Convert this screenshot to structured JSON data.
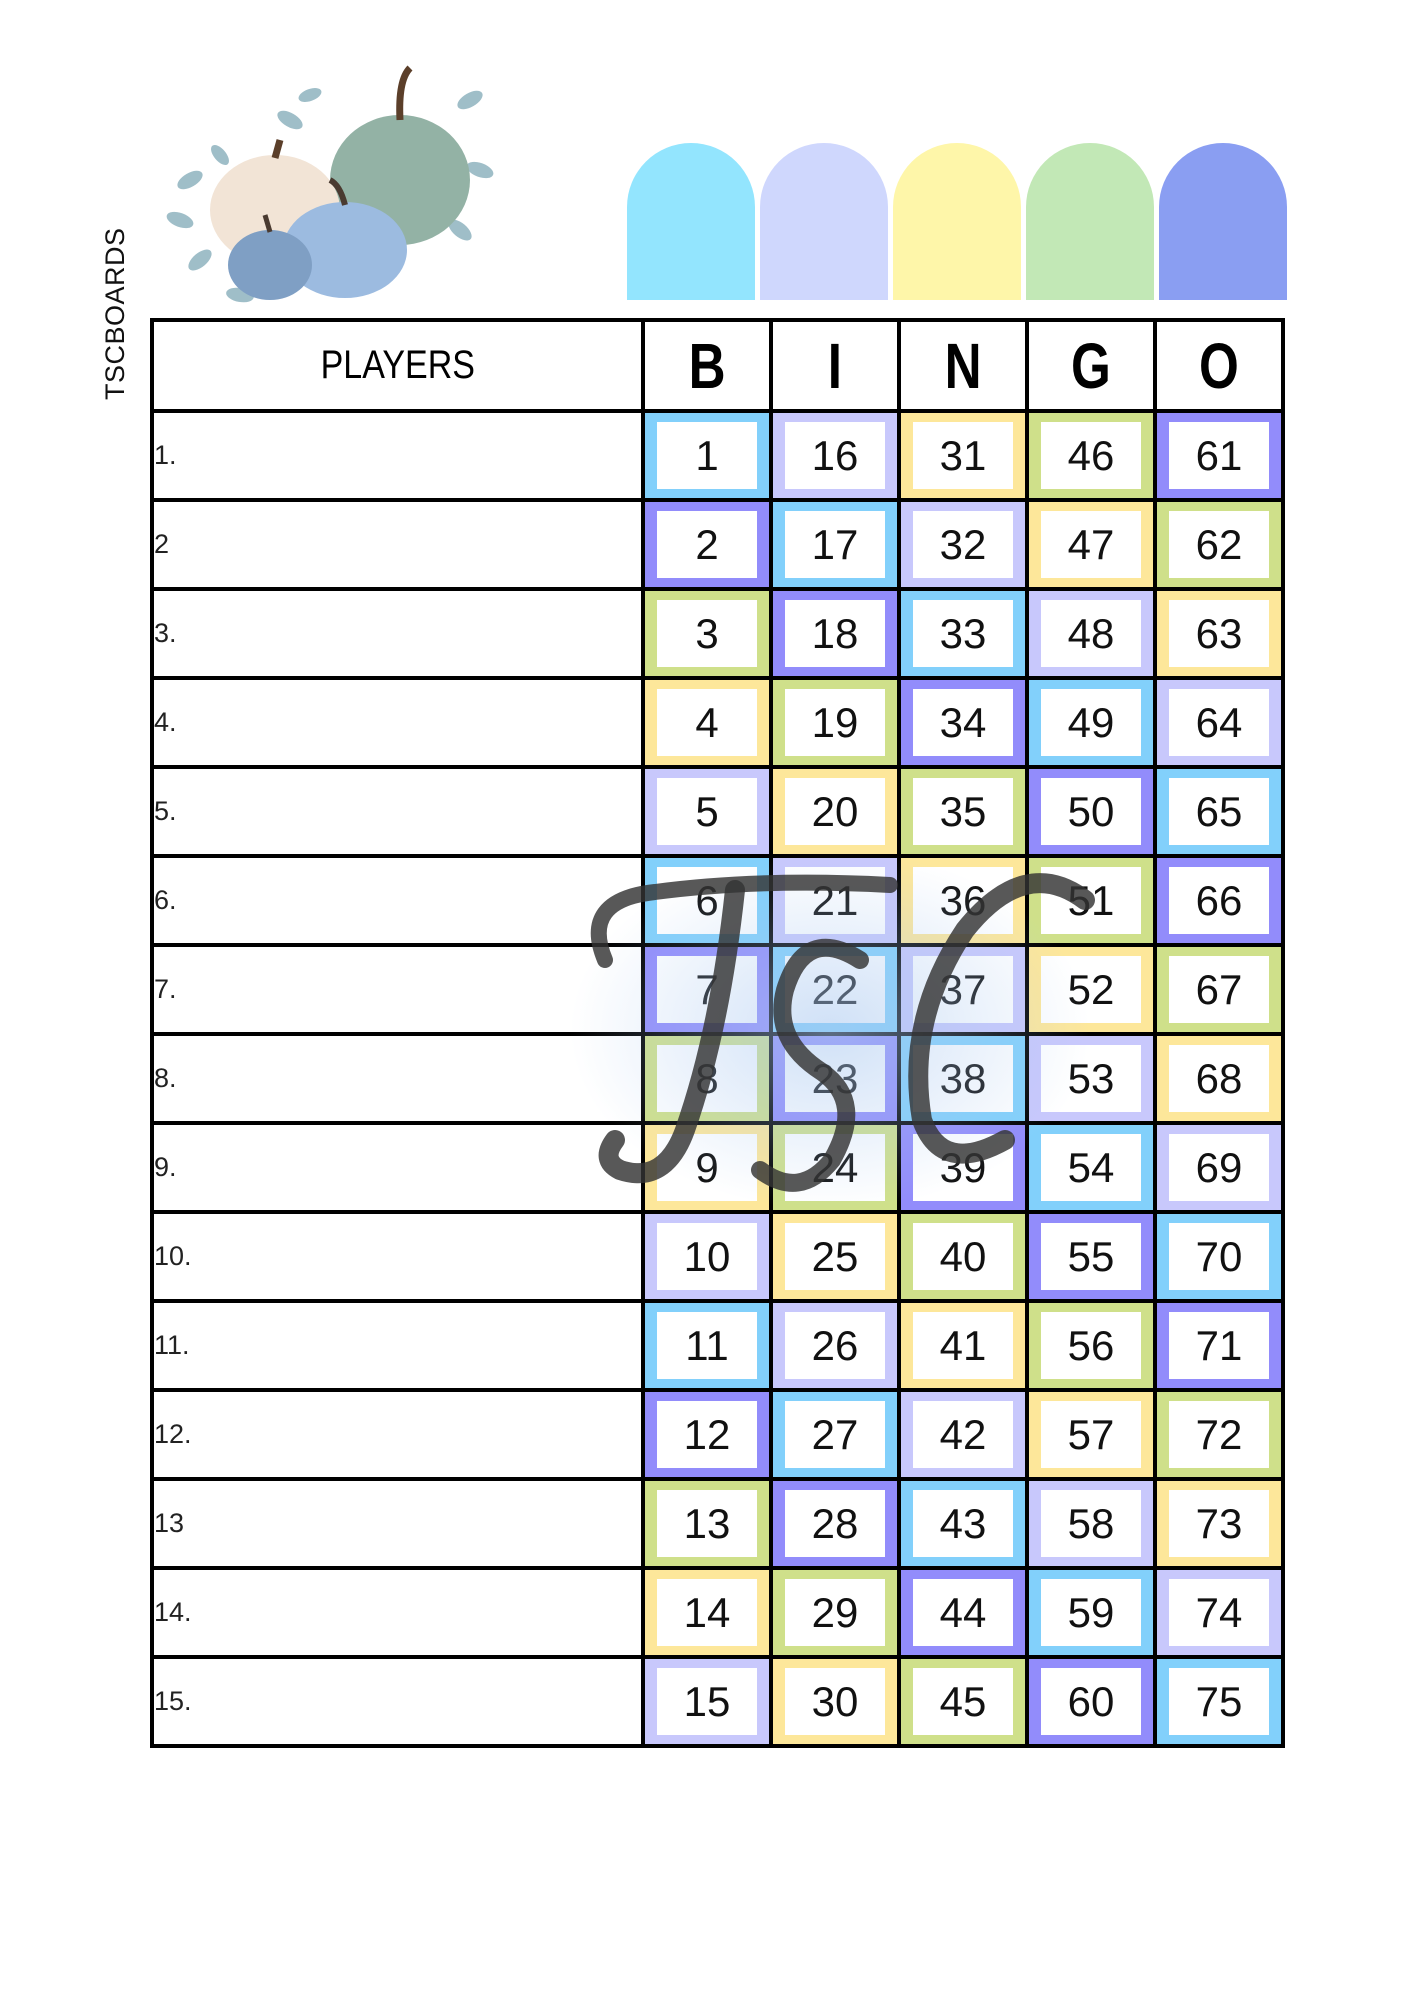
{
  "brand": "TSCBOARDS",
  "watermark": "TSC",
  "header": {
    "players_label": "PLAYERS",
    "letters": [
      "B",
      "I",
      "N",
      "G",
      "O"
    ]
  },
  "colors": {
    "cyan": "#82d0fb",
    "lavender": "#c8c8fc",
    "yellow": "#fde79a",
    "green": "#cfe08a",
    "purple": "#928cfb"
  },
  "arch_colors": [
    "#93e5fe",
    "#cfd7fd",
    "#fef6a9",
    "#c2e8b6",
    "#8a9ef2"
  ],
  "players": [
    "1.",
    "2",
    "3.",
    "4.",
    "5.",
    "6.",
    "7.",
    "8.",
    "9.",
    "10.",
    "11.",
    "12.",
    "13",
    "14.",
    "15."
  ],
  "rows": [
    [
      1,
      16,
      31,
      46,
      61
    ],
    [
      2,
      17,
      32,
      47,
      62
    ],
    [
      3,
      18,
      33,
      48,
      63
    ],
    [
      4,
      19,
      34,
      49,
      64
    ],
    [
      5,
      20,
      35,
      50,
      65
    ],
    [
      6,
      21,
      36,
      51,
      66
    ],
    [
      7,
      22,
      37,
      52,
      67
    ],
    [
      8,
      23,
      38,
      53,
      68
    ],
    [
      9,
      24,
      39,
      54,
      69
    ],
    [
      10,
      25,
      40,
      55,
      70
    ],
    [
      11,
      26,
      41,
      56,
      71
    ],
    [
      12,
      27,
      42,
      57,
      72
    ],
    [
      13,
      28,
      43,
      58,
      73
    ],
    [
      14,
      29,
      44,
      59,
      74
    ],
    [
      15,
      30,
      45,
      60,
      75
    ]
  ]
}
